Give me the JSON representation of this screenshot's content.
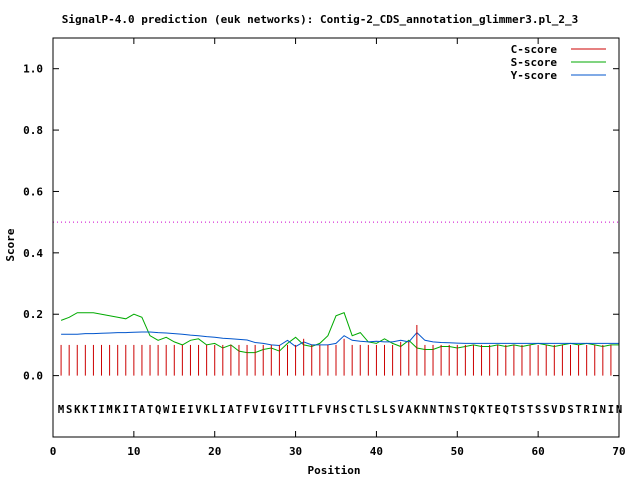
{
  "chart_data": {
    "type": "line",
    "title": "SignalP-4.0 prediction (euk networks): Contig-2_CDS_annotation_glimmer3.pl_2_3",
    "xlabel": "Position",
    "ylabel": "Score",
    "xlim": [
      0,
      70
    ],
    "ylim": [
      -0.2,
      1.1
    ],
    "xticks": [
      "0",
      "10",
      "20",
      "30",
      "40",
      "50",
      "60",
      "70"
    ],
    "yticks": [
      "0.0",
      "0.2",
      "0.4",
      "0.6",
      "0.8",
      "1.0"
    ],
    "legend_position": "top-right",
    "cutoff": 0.5,
    "sequence": "MSKKTIMKITATQWIEIVKLIATFVIGVITTLFVHSCTLSLSVAKNNTNSTQKTEQTSTSSVDSTRININ",
    "series": [
      {
        "name": "C-score",
        "color": "#cc0000",
        "style": "impulses",
        "x": [
          1,
          2,
          3,
          4,
          5,
          6,
          7,
          8,
          9,
          10,
          11,
          12,
          13,
          14,
          15,
          16,
          17,
          18,
          19,
          20,
          21,
          22,
          23,
          24,
          25,
          26,
          27,
          28,
          29,
          30,
          31,
          32,
          33,
          34,
          35,
          36,
          37,
          38,
          39,
          40,
          41,
          42,
          43,
          44,
          45,
          46,
          47,
          48,
          49,
          50,
          51,
          52,
          53,
          54,
          55,
          56,
          57,
          58,
          59,
          60,
          61,
          62,
          63,
          64,
          65,
          66,
          67,
          68,
          69,
          70
        ],
        "values": [
          0.1,
          0.1,
          0.1,
          0.1,
          0.1,
          0.1,
          0.1,
          0.1,
          0.1,
          0.1,
          0.1,
          0.1,
          0.1,
          0.1,
          0.1,
          0.1,
          0.1,
          0.1,
          0.1,
          0.1,
          0.1,
          0.1,
          0.1,
          0.1,
          0.1,
          0.1,
          0.1,
          0.1,
          0.1,
          0.1,
          0.12,
          0.1,
          0.1,
          0.1,
          0.1,
          0.12,
          0.1,
          0.1,
          0.1,
          0.1,
          0.1,
          0.1,
          0.11,
          0.11,
          0.165,
          0.1,
          0.1,
          0.1,
          0.1,
          0.1,
          0.1,
          0.1,
          0.1,
          0.1,
          0.1,
          0.1,
          0.1,
          0.1,
          0.1,
          0.1,
          0.1,
          0.1,
          0.1,
          0.1,
          0.1,
          0.1,
          0.1,
          0.1,
          0.1,
          0.1
        ]
      },
      {
        "name": "S-score",
        "color": "#00aa00",
        "style": "line",
        "x": [
          1,
          2,
          3,
          4,
          5,
          6,
          7,
          8,
          9,
          10,
          11,
          12,
          13,
          14,
          15,
          16,
          17,
          18,
          19,
          20,
          21,
          22,
          23,
          24,
          25,
          26,
          27,
          28,
          29,
          30,
          31,
          32,
          33,
          34,
          35,
          36,
          37,
          38,
          39,
          40,
          41,
          42,
          43,
          44,
          45,
          46,
          47,
          48,
          49,
          50,
          51,
          52,
          53,
          54,
          55,
          56,
          57,
          58,
          59,
          60,
          61,
          62,
          63,
          64,
          65,
          66,
          67,
          68,
          69,
          70
        ],
        "values": [
          0.18,
          0.19,
          0.205,
          0.205,
          0.205,
          0.2,
          0.195,
          0.19,
          0.185,
          0.2,
          0.19,
          0.13,
          0.115,
          0.125,
          0.11,
          0.1,
          0.115,
          0.12,
          0.1,
          0.105,
          0.09,
          0.1,
          0.08,
          0.075,
          0.075,
          0.085,
          0.09,
          0.08,
          0.105,
          0.125,
          0.1,
          0.095,
          0.105,
          0.13,
          0.195,
          0.205,
          0.13,
          0.14,
          0.11,
          0.105,
          0.12,
          0.105,
          0.095,
          0.115,
          0.09,
          0.085,
          0.085,
          0.095,
          0.095,
          0.09,
          0.095,
          0.1,
          0.095,
          0.095,
          0.1,
          0.095,
          0.1,
          0.095,
          0.1,
          0.105,
          0.1,
          0.095,
          0.1,
          0.105,
          0.1,
          0.105,
          0.1,
          0.095,
          0.1,
          0.1
        ]
      },
      {
        "name": "Y-score",
        "color": "#0055cc",
        "style": "line",
        "x": [
          1,
          2,
          3,
          4,
          5,
          6,
          7,
          8,
          9,
          10,
          11,
          12,
          13,
          14,
          15,
          16,
          17,
          18,
          19,
          20,
          21,
          22,
          23,
          24,
          25,
          26,
          27,
          28,
          29,
          30,
          31,
          32,
          33,
          34,
          35,
          36,
          37,
          38,
          39,
          40,
          41,
          42,
          43,
          44,
          45,
          46,
          47,
          48,
          49,
          50,
          51,
          52,
          53,
          54,
          55,
          56,
          57,
          58,
          59,
          60,
          61,
          62,
          63,
          64,
          65,
          66,
          67,
          68,
          69,
          70
        ],
        "values": [
          0.135,
          0.135,
          0.135,
          0.137,
          0.137,
          0.138,
          0.139,
          0.14,
          0.14,
          0.141,
          0.142,
          0.142,
          0.14,
          0.139,
          0.137,
          0.135,
          0.132,
          0.13,
          0.127,
          0.125,
          0.122,
          0.12,
          0.118,
          0.116,
          0.108,
          0.105,
          0.1,
          0.098,
          0.115,
          0.095,
          0.11,
          0.1,
          0.1,
          0.1,
          0.105,
          0.13,
          0.115,
          0.112,
          0.11,
          0.112,
          0.11,
          0.11,
          0.115,
          0.11,
          0.14,
          0.115,
          0.11,
          0.108,
          0.107,
          0.106,
          0.105,
          0.105,
          0.105,
          0.105,
          0.105,
          0.105,
          0.105,
          0.105,
          0.105,
          0.105,
          0.105,
          0.105,
          0.105,
          0.105,
          0.105,
          0.105,
          0.105,
          0.105,
          0.105,
          0.105
        ]
      }
    ]
  }
}
